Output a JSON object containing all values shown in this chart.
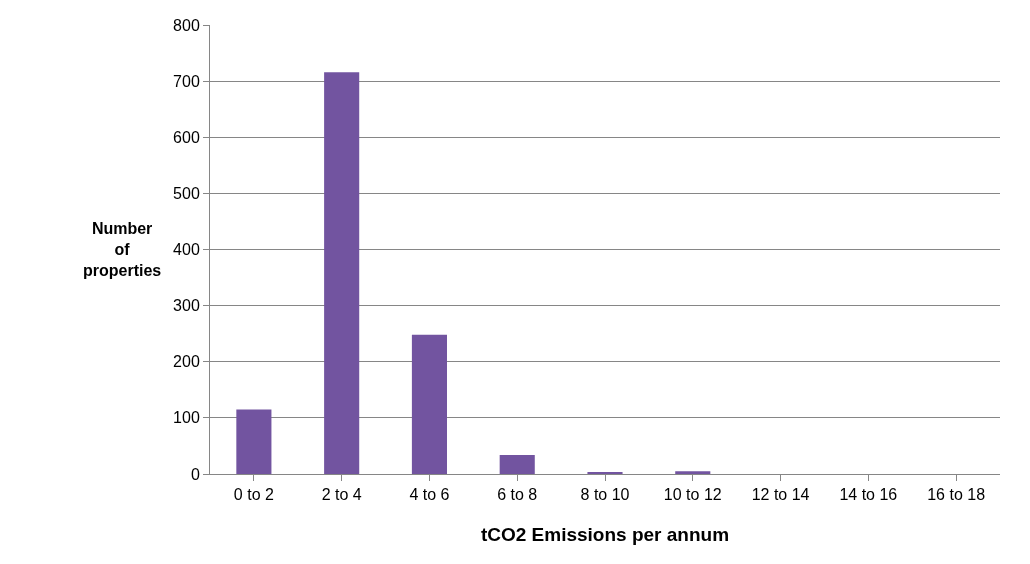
{
  "chart_data": {
    "type": "bar",
    "xlabel": "tCO2 Emissions per annum",
    "ylabel": "Number\nof\nproperties",
    "categories": [
      "0 to 2",
      "2 to 4",
      "4 to 6",
      "6 to 8",
      "8 to 10",
      "10 to 12",
      "12 to 14",
      "14 to 16",
      "16 to 18"
    ],
    "values": [
      115,
      716,
      248,
      34,
      2,
      5,
      0,
      0,
      0
    ],
    "color": "#7254a0",
    "ylim": [
      0,
      800
    ],
    "yticks": [
      0,
      100,
      200,
      300,
      400,
      500,
      600,
      700,
      800
    ],
    "grid": "y"
  }
}
